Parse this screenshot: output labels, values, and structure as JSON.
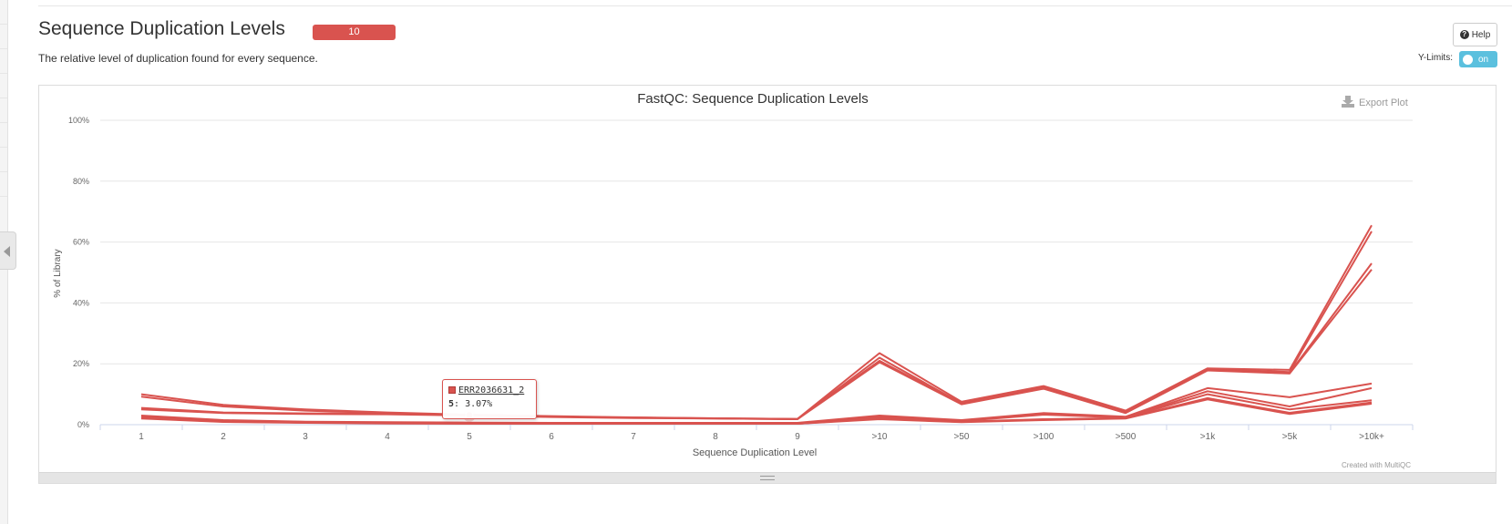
{
  "section": {
    "title": "Sequence Duplication Levels",
    "badge": "10",
    "description": "The relative level of duplication found for every sequence.",
    "help_label": "Help",
    "ylimits_label": "Y-Limits:",
    "ylimits_state": "on"
  },
  "plot": {
    "export_label": "Export Plot",
    "credit": "Created with MultiQC"
  },
  "colors": {
    "series": "#d9534f",
    "badge": "#d9534f",
    "toggle": "#5bc0de"
  },
  "tooltip": {
    "sample": "ERR2036631_2",
    "x_label": "5",
    "value_text": "3.07%"
  },
  "chart_data": {
    "type": "line",
    "title": "FastQC: Sequence Duplication Levels",
    "xlabel": "Sequence Duplication Level",
    "ylabel": "% of Library",
    "categories": [
      "1",
      "2",
      "3",
      "4",
      "5",
      "6",
      "7",
      "8",
      "9",
      ">10",
      ">50",
      ">100",
      ">500",
      ">1k",
      ">5k",
      ">10k+"
    ],
    "yticks": [
      "0%",
      "20%",
      "40%",
      "60%",
      "80%",
      "100%"
    ],
    "ylim": [
      0,
      100
    ],
    "grid": true,
    "series": [
      {
        "values": [
          10.0,
          6.5,
          5.0,
          4.0,
          3.3,
          2.8,
          2.4,
          2.1,
          1.9,
          23.5,
          7.5,
          12.7,
          4.6,
          18.5,
          18.0,
          65.5
        ]
      },
      {
        "values": [
          9.2,
          6.0,
          4.6,
          3.8,
          3.1,
          2.6,
          2.3,
          2.0,
          1.8,
          22.0,
          7.0,
          12.3,
          4.2,
          18.3,
          17.3,
          63.5
        ]
      },
      {
        "values": [
          5.5,
          4.0,
          3.7,
          3.6,
          3.07,
          2.6,
          2.3,
          2.1,
          1.9,
          21.0,
          6.9,
          12.0,
          4.0,
          18.0,
          17.0,
          53.0
        ]
      },
      {
        "values": [
          5.0,
          3.8,
          3.5,
          3.4,
          3.0,
          2.5,
          2.2,
          2.0,
          1.8,
          20.5,
          6.7,
          11.8,
          3.8,
          17.8,
          16.8,
          51.0
        ]
      },
      {
        "values": [
          3.0,
          1.5,
          1.0,
          0.8,
          0.7,
          0.6,
          0.6,
          0.6,
          0.6,
          3.0,
          1.5,
          3.8,
          2.6,
          12.0,
          9.0,
          13.5
        ]
      },
      {
        "values": [
          2.8,
          1.4,
          0.9,
          0.7,
          0.6,
          0.5,
          0.5,
          0.5,
          0.5,
          2.6,
          1.3,
          3.5,
          2.4,
          11.0,
          6.0,
          12.0
        ]
      },
      {
        "values": [
          2.5,
          1.2,
          0.8,
          0.6,
          0.5,
          0.5,
          0.4,
          0.4,
          0.4,
          2.4,
          1.2,
          3.3,
          2.3,
          10.0,
          5.0,
          8.0
        ]
      },
      {
        "values": [
          2.3,
          1.1,
          0.7,
          0.5,
          0.4,
          0.4,
          0.4,
          0.4,
          0.3,
          2.2,
          1.0,
          1.8,
          2.2,
          8.7,
          3.9,
          7.3
        ]
      },
      {
        "values": [
          2.2,
          1.0,
          0.7,
          0.5,
          0.4,
          0.4,
          0.3,
          0.3,
          0.3,
          2.0,
          0.9,
          1.7,
          2.1,
          8.5,
          3.7,
          7.1
        ]
      },
      {
        "values": [
          2.0,
          0.9,
          0.6,
          0.4,
          0.3,
          0.3,
          0.3,
          0.3,
          0.3,
          1.8,
          0.8,
          1.5,
          2.0,
          8.3,
          3.5,
          6.9
        ]
      }
    ]
  }
}
